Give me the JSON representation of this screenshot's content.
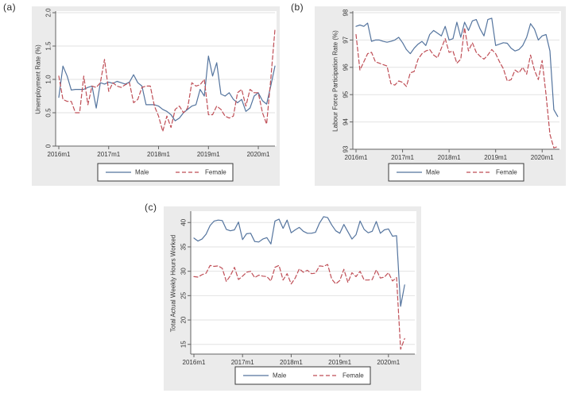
{
  "colors": {
    "male_line": "#54749e",
    "female_line": "#bf4e56",
    "panel_background": "#ebebeb",
    "plot_background": "#ffffff",
    "gridline": "#e2e2e2",
    "axis": "#636363",
    "text": "#363636",
    "legend_border": "#3a3a3a",
    "legend_background": "#ffffff"
  },
  "legend": {
    "male_label": "Male",
    "female_label": "Female"
  },
  "chart_data": [
    {
      "type": "line",
      "panel_label": "(a)",
      "ylabel": "Unemployment Rate (%)",
      "xlabel": "",
      "ylim": [
        0,
        2.0
      ],
      "yticks": [
        0,
        0.5,
        1.0,
        1.5,
        2.0
      ],
      "ytick_labels": [
        "0",
        "0.5",
        "1.0",
        "1.5",
        "2.0"
      ],
      "xtick_labels": [
        "2016m1",
        "2017m1",
        "2018m1",
        "2019m1",
        "2020m1"
      ],
      "xtick_month_index": [
        0,
        12,
        24,
        36,
        48
      ],
      "x_start": "2016m1",
      "x_end": "2020m5",
      "grid": true,
      "legend_position": "bottom",
      "series": [
        {
          "name": "Male",
          "color_key": "male_line",
          "style": "solid",
          "values": [
            0.73,
            1.2,
            1.05,
            0.84,
            0.85,
            0.85,
            0.85,
            0.88,
            0.9,
            0.57,
            0.95,
            0.93,
            0.96,
            0.94,
            0.97,
            0.95,
            0.93,
            0.96,
            1.07,
            0.95,
            0.9,
            0.62,
            0.62,
            0.62,
            0.6,
            0.55,
            0.52,
            0.47,
            0.38,
            0.42,
            0.5,
            0.55,
            0.6,
            0.62,
            0.85,
            0.75,
            1.35,
            1.05,
            1.25,
            0.78,
            0.75,
            0.8,
            0.7,
            0.65,
            0.7,
            0.52,
            0.57,
            0.75,
            0.8,
            0.68,
            0.63,
            0.9,
            1.2
          ]
        },
        {
          "name": "Female",
          "color_key": "female_line",
          "style": "dashed",
          "values": [
            1.05,
            0.7,
            0.67,
            0.67,
            0.5,
            0.5,
            1.05,
            0.62,
            0.9,
            0.88,
            0.95,
            1.3,
            0.82,
            0.95,
            0.9,
            0.88,
            0.92,
            0.95,
            0.65,
            0.7,
            0.88,
            0.9,
            0.9,
            0.6,
            0.45,
            0.22,
            0.45,
            0.28,
            0.55,
            0.6,
            0.5,
            0.57,
            0.95,
            0.9,
            0.92,
            1.0,
            0.47,
            0.47,
            0.6,
            0.55,
            0.45,
            0.42,
            0.45,
            0.8,
            0.85,
            0.6,
            0.85,
            0.8,
            0.8,
            0.5,
            0.33,
            1.0,
            1.75
          ]
        }
      ]
    },
    {
      "type": "line",
      "panel_label": "(b)",
      "ylabel": "Labour Force Participation Rate (%)",
      "xlabel": "",
      "ylim": [
        93,
        98
      ],
      "yticks": [
        93,
        94,
        95,
        96,
        97,
        98
      ],
      "ytick_labels": [
        "93",
        "94",
        "95",
        "96",
        "97",
        "98"
      ],
      "xtick_labels": [
        "2016m1",
        "2017m1",
        "2018m1",
        "2019m1",
        "2020m1"
      ],
      "xtick_month_index": [
        0,
        12,
        24,
        36,
        48
      ],
      "x_start": "2016m1",
      "x_end": "2020m5",
      "grid": true,
      "legend_position": "bottom",
      "series": [
        {
          "name": "Male",
          "color_key": "male_line",
          "style": "solid",
          "values": [
            97.5,
            97.55,
            97.5,
            97.62,
            96.95,
            97.0,
            97.0,
            96.95,
            96.92,
            96.95,
            97.0,
            97.1,
            96.9,
            96.65,
            96.5,
            96.7,
            96.85,
            96.95,
            96.8,
            97.2,
            97.35,
            97.25,
            97.15,
            97.5,
            97.0,
            97.05,
            97.65,
            97.1,
            97.65,
            97.35,
            97.7,
            97.75,
            97.4,
            97.15,
            97.75,
            97.8,
            96.8,
            96.85,
            96.9,
            96.88,
            96.7,
            96.6,
            96.65,
            96.8,
            97.1,
            97.6,
            97.4,
            97.0,
            97.15,
            97.2,
            96.6,
            94.45,
            94.2
          ]
        },
        {
          "name": "Female",
          "color_key": "female_line",
          "style": "dashed",
          "values": [
            97.2,
            95.9,
            96.2,
            96.5,
            96.55,
            96.2,
            96.15,
            96.1,
            96.05,
            95.4,
            95.35,
            95.5,
            95.45,
            95.3,
            95.8,
            95.85,
            96.3,
            96.5,
            96.6,
            96.65,
            96.45,
            96.35,
            96.7,
            97.05,
            96.55,
            96.6,
            96.15,
            96.3,
            97.45,
            96.6,
            96.9,
            96.55,
            96.4,
            96.3,
            96.45,
            96.65,
            96.5,
            96.2,
            95.95,
            95.5,
            95.55,
            95.9,
            95.8,
            96.0,
            95.75,
            96.45,
            95.9,
            95.55,
            96.25,
            95.0,
            93.55,
            93.05,
            93.1
          ]
        }
      ]
    },
    {
      "type": "line",
      "panel_label": "(c)",
      "ylabel": "Total Actual Weekly Hours Worked",
      "xlabel": "",
      "ylim": [
        13,
        42
      ],
      "yticks": [
        15,
        20,
        25,
        30,
        35,
        40
      ],
      "ytick_labels": [
        "15",
        "20",
        "25",
        "30",
        "35",
        "40"
      ],
      "xtick_labels": [
        "2016m1",
        "2017m1",
        "2018m1",
        "2019m1",
        "2020m1"
      ],
      "xtick_month_index": [
        0,
        12,
        24,
        36,
        48
      ],
      "x_start": "2016m1",
      "x_end": "2020m5",
      "grid": true,
      "legend_position": "bottom",
      "series": [
        {
          "name": "Male",
          "color_key": "male_line",
          "style": "solid",
          "values": [
            36.8,
            36.2,
            36.6,
            37.6,
            39.4,
            40.3,
            40.5,
            40.4,
            38.6,
            38.3,
            38.5,
            40.1,
            36.5,
            37.7,
            37.8,
            36.1,
            36.0,
            36.6,
            36.9,
            35.6,
            40.3,
            40.7,
            38.8,
            40.5,
            37.9,
            38.5,
            39.0,
            38.2,
            37.8,
            37.8,
            38.0,
            39.9,
            41.2,
            41.0,
            39.5,
            38.3,
            37.8,
            39.6,
            38.1,
            36.6,
            37.5,
            40.3,
            38.6,
            37.9,
            38.2,
            40.2,
            37.8,
            38.5,
            38.7,
            37.2,
            37.3,
            22.8,
            27.2
          ]
        },
        {
          "name": "Female",
          "color_key": "female_line",
          "style": "dashed",
          "values": [
            28.9,
            28.8,
            29.3,
            29.6,
            31.2,
            31.0,
            31.1,
            30.6,
            27.9,
            29.1,
            30.8,
            28.3,
            29.0,
            29.8,
            30.0,
            28.7,
            29.2,
            29.0,
            28.9,
            28.0,
            30.8,
            31.2,
            28.2,
            29.5,
            27.4,
            28.6,
            30.5,
            29.8,
            30.2,
            29.5,
            29.6,
            31.1,
            31.0,
            31.4,
            28.4,
            27.4,
            28.1,
            30.4,
            27.7,
            29.7,
            28.9,
            30.0,
            28.2,
            28.2,
            28.3,
            30.3,
            28.6,
            28.8,
            29.7,
            28.0,
            28.7,
            14.0,
            16.2
          ]
        }
      ]
    }
  ]
}
